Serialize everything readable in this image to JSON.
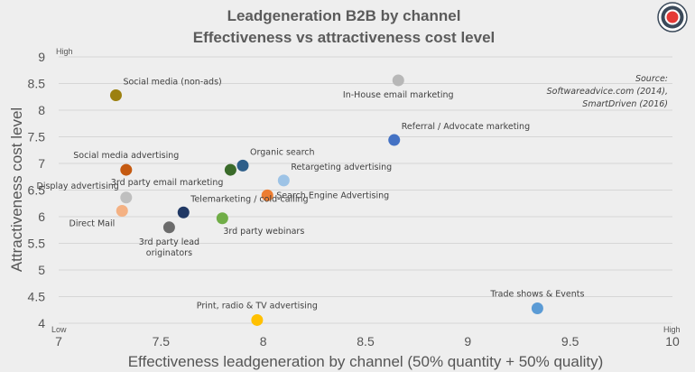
{
  "chart_data": {
    "type": "scatter",
    "title": "Leadgeneration B2B by channel",
    "subtitle": "Effectiveness vs attractiveness cost level",
    "xlabel": "Effectiveness leadgeneration by channel (50% quantity + 50% quality)",
    "ylabel": "Attractiveness cost level",
    "xlim": [
      7,
      10
    ],
    "ylim": [
      4,
      9
    ],
    "x_ticks": [
      "7",
      "7.5",
      "8",
      "8.5",
      "9",
      "9.5",
      "10"
    ],
    "y_ticks": [
      "4",
      "4.5",
      "5",
      "5.5",
      "6",
      "6.5",
      "7",
      "7.5",
      "8",
      "8.5",
      "9"
    ],
    "grid": "horizontal",
    "y_high_label": "High",
    "x_low_label": "Low",
    "x_high_label": "High",
    "source": [
      "Source:",
      "Softwareadvice.com (2014),",
      "SmartDriven (2016)"
    ],
    "points": [
      {
        "label": [
          "Social media (non-ads)"
        ],
        "x": 7.28,
        "y": 8.28,
        "color": "#9c8010",
        "label_pos": "above-right"
      },
      {
        "label": [
          "In-House email marketing"
        ],
        "x": 8.66,
        "y": 8.56,
        "color": "#b7b7b7",
        "label_pos": "below"
      },
      {
        "label": [
          "Referral / Advocate marketing"
        ],
        "x": 8.64,
        "y": 7.44,
        "color": "#4472c4",
        "label_pos": "above-right"
      },
      {
        "label": [
          "Organic search"
        ],
        "x": 7.9,
        "y": 6.96,
        "color": "#2e5f8a",
        "label_pos": "above-right"
      },
      {
        "label": [
          "Social media advertising"
        ],
        "x": 7.33,
        "y": 6.88,
        "color": "#c55a11",
        "label_pos": "above"
      },
      {
        "label": [
          "3rd party email marketing"
        ],
        "x": 7.84,
        "y": 6.88,
        "color": "#3a6b2a",
        "label_pos": "below-left"
      },
      {
        "label": [
          "Retargeting advertising"
        ],
        "x": 8.1,
        "y": 6.68,
        "color": "#9dc3e6",
        "label_pos": "above-right"
      },
      {
        "label": [
          "Search Engine Advertising"
        ],
        "x": 8.02,
        "y": 6.4,
        "color": "#ed7d31",
        "label_pos": "right"
      },
      {
        "label": [
          "Display advertising"
        ],
        "x": 7.33,
        "y": 6.36,
        "color": "#bfbfbf",
        "label_pos": "above-left"
      },
      {
        "label": [
          "Telemarketing / cold-calling"
        ],
        "x": 7.61,
        "y": 6.08,
        "color": "#203864",
        "label_pos": "above-right"
      },
      {
        "label": [
          "Direct Mail"
        ],
        "x": 7.31,
        "y": 6.11,
        "color": "#f4b183",
        "label_pos": "below-left"
      },
      {
        "label": [
          "3rd party webinars"
        ],
        "x": 7.8,
        "y": 5.97,
        "color": "#70ad47",
        "label_pos": "below-right"
      },
      {
        "label": [
          "3rd party lead",
          "originators"
        ],
        "x": 7.54,
        "y": 5.8,
        "color": "#6b6b6b",
        "label_pos": "below"
      },
      {
        "label": [
          "Trade shows & Events"
        ],
        "x": 9.34,
        "y": 4.28,
        "color": "#5b9bd5",
        "label_pos": "above"
      },
      {
        "label": [
          "Print, radio & TV advertising"
        ],
        "x": 7.97,
        "y": 4.06,
        "color": "#ffc000",
        "label_pos": "above"
      }
    ]
  },
  "logo": {
    "name": "target-icon",
    "outer": "#3b4a5a",
    "inner": "#e53935"
  }
}
